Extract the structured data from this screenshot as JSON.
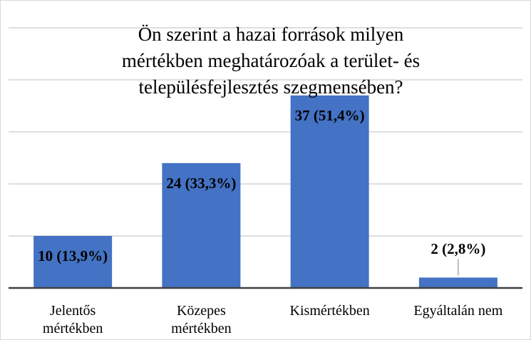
{
  "chart_data": {
    "type": "bar",
    "title": "Ön szerint a hazai források milyen\nmértékben meghatározóak a terület- és\ntelepülésfejlesztés szegmensében?",
    "categories": [
      "Jelentős\nmértékben",
      "Közepes\nmértékben",
      "Kismértékben",
      "Egyáltalán nem"
    ],
    "values": [
      10,
      24,
      37,
      2
    ],
    "value_labels": [
      "10 (13,9%)",
      "24 (33,3%)",
      "37 (51,4%)",
      "2 (2,8%)"
    ],
    "color": "#4472c4",
    "ylim": [
      0,
      50
    ],
    "yticks": [
      0,
      10,
      20,
      30,
      40,
      50
    ],
    "grid": true
  }
}
